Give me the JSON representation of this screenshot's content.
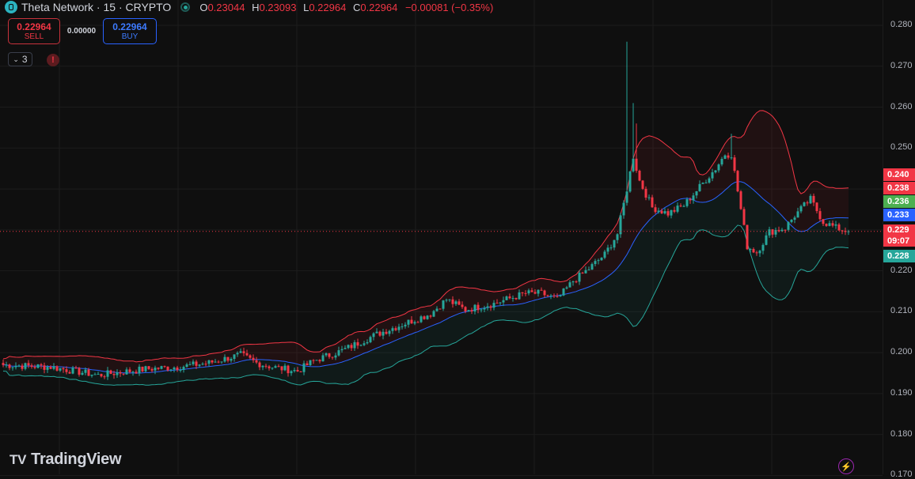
{
  "header": {
    "symbol_title": "Theta Network · 15 · CRYPTO",
    "ohlc": [
      {
        "key": "O",
        "value": "0.23044"
      },
      {
        "key": "H",
        "value": "0.23093"
      },
      {
        "key": "L",
        "value": "0.22964"
      },
      {
        "key": "C",
        "value": "0.22964"
      }
    ],
    "change": "−0.00081 (−0.35%)"
  },
  "trade": {
    "sell_price": "0.22964",
    "sell_label": "SELL",
    "spread": "0.00000",
    "buy_price": "0.22964",
    "buy_label": "BUY"
  },
  "indicators": {
    "count": "3",
    "warning": "!"
  },
  "branding": {
    "logo_text": "TradingView"
  },
  "price_axis": {
    "ticks": [
      "0.280",
      "0.270",
      "0.260",
      "0.250",
      "0.240",
      "0.230",
      "0.220",
      "0.210",
      "0.200",
      "0.190",
      "0.180",
      "0.170"
    ],
    "tags": [
      {
        "text": "0.240",
        "color": "#f23645"
      },
      {
        "text": "0.238",
        "color": "#f23645"
      },
      {
        "text": "0.236",
        "color": "#4caf50"
      },
      {
        "text": "0.233",
        "color": "#2962ff"
      },
      {
        "text": "0.229",
        "color": "#f23645"
      },
      {
        "text": "09:07",
        "color": "#f23645"
      },
      {
        "text": "0.228",
        "color": "#26a69a"
      }
    ]
  },
  "colors": {
    "up": "#26a69a",
    "down": "#f23645",
    "ma": "#2962ff",
    "upper_band": "#f23645",
    "lower_band": "#26a69a",
    "background": "#0f0f0f"
  },
  "chart_data": {
    "type": "candlestick",
    "ylim": [
      0.17,
      0.28
    ],
    "grid": true,
    "last_price": 0.22964,
    "close_anchors": [
      [
        0,
        0.197
      ],
      [
        15,
        0.1965
      ],
      [
        30,
        0.1945
      ],
      [
        45,
        0.196
      ],
      [
        55,
        0.1965
      ],
      [
        65,
        0.1975
      ],
      [
        75,
        0.1995
      ],
      [
        80,
        0.1975
      ],
      [
        85,
        0.1965
      ],
      [
        93,
        0.1955
      ],
      [
        98,
        0.198
      ],
      [
        107,
        0.2005
      ],
      [
        118,
        0.2045
      ],
      [
        128,
        0.2075
      ],
      [
        135,
        0.2095
      ],
      [
        140,
        0.213
      ],
      [
        146,
        0.2105
      ],
      [
        155,
        0.212
      ],
      [
        165,
        0.2145
      ],
      [
        170,
        0.2145
      ],
      [
        175,
        0.213
      ],
      [
        180,
        0.2175
      ],
      [
        185,
        0.2205
      ],
      [
        190,
        0.224
      ],
      [
        194,
        0.229
      ],
      [
        197,
        0.24
      ],
      [
        199,
        0.248
      ],
      [
        201,
        0.242
      ],
      [
        205,
        0.2355
      ],
      [
        210,
        0.234
      ],
      [
        215,
        0.236
      ],
      [
        220,
        0.2405
      ],
      [
        225,
        0.245
      ],
      [
        228,
        0.2485
      ],
      [
        230,
        0.2485
      ],
      [
        232,
        0.2395
      ],
      [
        235,
        0.226
      ],
      [
        238,
        0.2245
      ],
      [
        242,
        0.2295
      ],
      [
        247,
        0.2305
      ],
      [
        250,
        0.2335
      ],
      [
        255,
        0.2375
      ],
      [
        259,
        0.232
      ],
      [
        263,
        0.2305
      ],
      [
        267,
        0.2296
      ]
    ],
    "spikes": [
      {
        "index": 197,
        "high": 0.276
      },
      {
        "index": 199,
        "high": 0.261
      },
      {
        "index": 200,
        "high": 0.256
      },
      {
        "index": 230,
        "high": 0.2535
      }
    ],
    "indicators": [
      "moving_average",
      "upper_band",
      "lower_band"
    ]
  }
}
